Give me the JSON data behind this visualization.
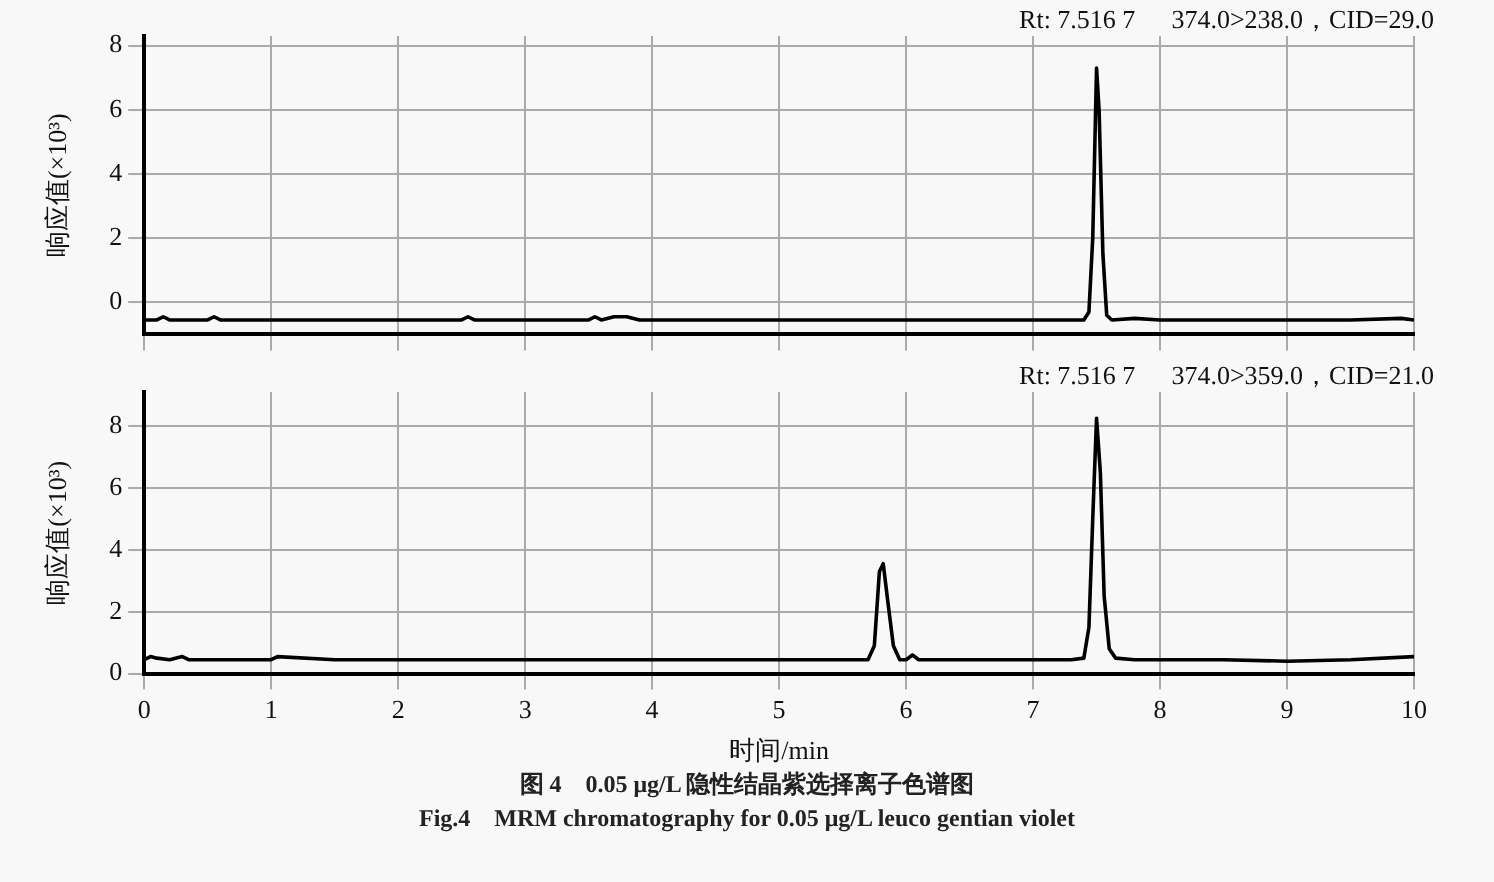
{
  "chart_data": [
    {
      "type": "line",
      "ylabel": "响应值(×10³)",
      "annotations": [
        "Rt: 7.516 7",
        "374.0>238.0，CID=29.0"
      ],
      "xlim": [
        0,
        10
      ],
      "xticks": [
        0,
        1,
        2,
        3,
        4,
        5,
        6,
        7,
        8,
        9,
        10
      ],
      "ylim": [
        -1,
        8.3
      ],
      "yticks": [
        0,
        2,
        4,
        6,
        8
      ],
      "grid": true,
      "legend": false,
      "marker": "none",
      "line_style": "solid",
      "tick_labels": "y",
      "series": [
        {
          "color": "#000000",
          "x": [
            0,
            0.1,
            0.15,
            0.2,
            0.5,
            0.55,
            0.6,
            1.0,
            1.5,
            2.0,
            2.5,
            2.55,
            2.6,
            3.0,
            3.5,
            3.55,
            3.6,
            3.7,
            3.8,
            3.9,
            4.0,
            4.5,
            5.0,
            5.5,
            6.0,
            6.5,
            7.0,
            7.2,
            7.4,
            7.44,
            7.47,
            7.5,
            7.52,
            7.55,
            7.58,
            7.62,
            7.8,
            8.0,
            8.5,
            9.0,
            9.5,
            9.9,
            10
          ],
          "values": [
            -0.55,
            -0.55,
            -0.45,
            -0.55,
            -0.55,
            -0.45,
            -0.55,
            -0.55,
            -0.55,
            -0.55,
            -0.55,
            -0.45,
            -0.55,
            -0.55,
            -0.55,
            -0.45,
            -0.55,
            -0.45,
            -0.45,
            -0.55,
            -0.55,
            -0.55,
            -0.55,
            -0.55,
            -0.55,
            -0.55,
            -0.55,
            -0.55,
            -0.55,
            -0.3,
            2,
            7.3,
            6,
            1.5,
            -0.4,
            -0.55,
            -0.5,
            -0.55,
            -0.55,
            -0.55,
            -0.55,
            -0.5,
            -0.55
          ]
        }
      ]
    },
    {
      "type": "line",
      "xlabel": "时间/min",
      "ylabel": "响应值(×10³)",
      "annotations": [
        "Rt: 7.516 7",
        "374.0>359.0，CID=21.0"
      ],
      "title": "图 4　0.05 μg/L 隐性结晶紫选择离子色谱图",
      "subtitle": "Fig.4　MRM chromatography for 0.05 μg/L leuco gentian violet",
      "xlim": [
        0,
        10
      ],
      "xticks": [
        0,
        1,
        2,
        3,
        4,
        5,
        6,
        7,
        8,
        9,
        10
      ],
      "ylim": [
        0,
        9.1
      ],
      "yticks": [
        0,
        2,
        4,
        6,
        8
      ],
      "grid": true,
      "legend": false,
      "marker": "none",
      "line_style": "solid",
      "series": [
        {
          "color": "#000000",
          "x": [
            0,
            0.05,
            0.1,
            0.2,
            0.3,
            0.35,
            0.5,
            1.0,
            1.05,
            1.5,
            2.0,
            2.5,
            3.0,
            3.5,
            4.0,
            4.5,
            5.0,
            5.5,
            5.7,
            5.75,
            5.79,
            5.82,
            5.86,
            5.9,
            5.95,
            6.0,
            6.05,
            6.1,
            6.3,
            6.5,
            7.0,
            7.3,
            7.4,
            7.44,
            7.47,
            7.5,
            7.53,
            7.56,
            7.6,
            7.65,
            7.8,
            8.0,
            8.5,
            9.0,
            9.5,
            10
          ],
          "values": [
            0.45,
            0.55,
            0.5,
            0.45,
            0.55,
            0.45,
            0.45,
            0.45,
            0.55,
            0.45,
            0.45,
            0.45,
            0.45,
            0.45,
            0.45,
            0.45,
            0.45,
            0.45,
            0.45,
            0.9,
            3.3,
            3.55,
            2.2,
            0.9,
            0.45,
            0.45,
            0.6,
            0.45,
            0.45,
            0.45,
            0.45,
            0.45,
            0.5,
            1.5,
            5,
            8.25,
            6.5,
            2.5,
            0.8,
            0.5,
            0.45,
            0.45,
            0.45,
            0.4,
            0.45,
            0.55
          ]
        }
      ]
    }
  ]
}
